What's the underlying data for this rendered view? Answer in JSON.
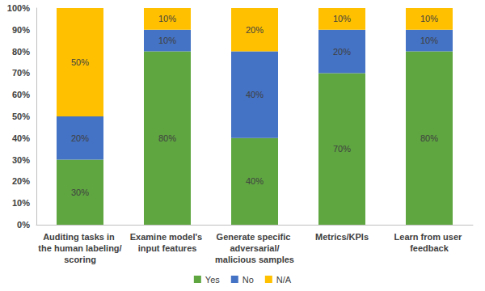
{
  "chart_data": {
    "type": "bar",
    "stacked": true,
    "data_labels": true,
    "grid": false,
    "legend": "bottom",
    "categories": [
      "Auditing tasks in the human labeling/scoring",
      "Examine model's input features",
      "Generate specific adversarial/malicious samples",
      "Metrics/KPIs",
      "Learn from user feedback"
    ],
    "ylim": [
      0,
      100
    ],
    "yticks": [
      {
        "value": 0,
        "label": "0%"
      },
      {
        "value": 10,
        "label": "10%"
      },
      {
        "value": 20,
        "label": "20%"
      },
      {
        "value": 30,
        "label": "30%"
      },
      {
        "value": 40,
        "label": "40%"
      },
      {
        "value": 50,
        "label": "50%"
      },
      {
        "value": 60,
        "label": "60%"
      },
      {
        "value": 70,
        "label": "70%"
      },
      {
        "value": 80,
        "label": "80%"
      },
      {
        "value": 90,
        "label": "90%"
      },
      {
        "value": 100,
        "label": "100%"
      }
    ],
    "series": [
      {
        "name": "Yes",
        "color": "#5fa641",
        "values": [
          30,
          80,
          40,
          70,
          80
        ],
        "value_labels": [
          "30%",
          "80%",
          "40%",
          "70%",
          "80%"
        ]
      },
      {
        "name": "No",
        "color": "#4472c4",
        "values": [
          20,
          10,
          40,
          20,
          10
        ],
        "value_labels": [
          "20%",
          "10%",
          "40%",
          "20%",
          "10%"
        ]
      },
      {
        "name": "N/A",
        "color": "#ffc000",
        "values": [
          50,
          10,
          20,
          10,
          10
        ],
        "value_labels": [
          "50%",
          "10%",
          "20%",
          "10%",
          "10%"
        ]
      }
    ]
  }
}
